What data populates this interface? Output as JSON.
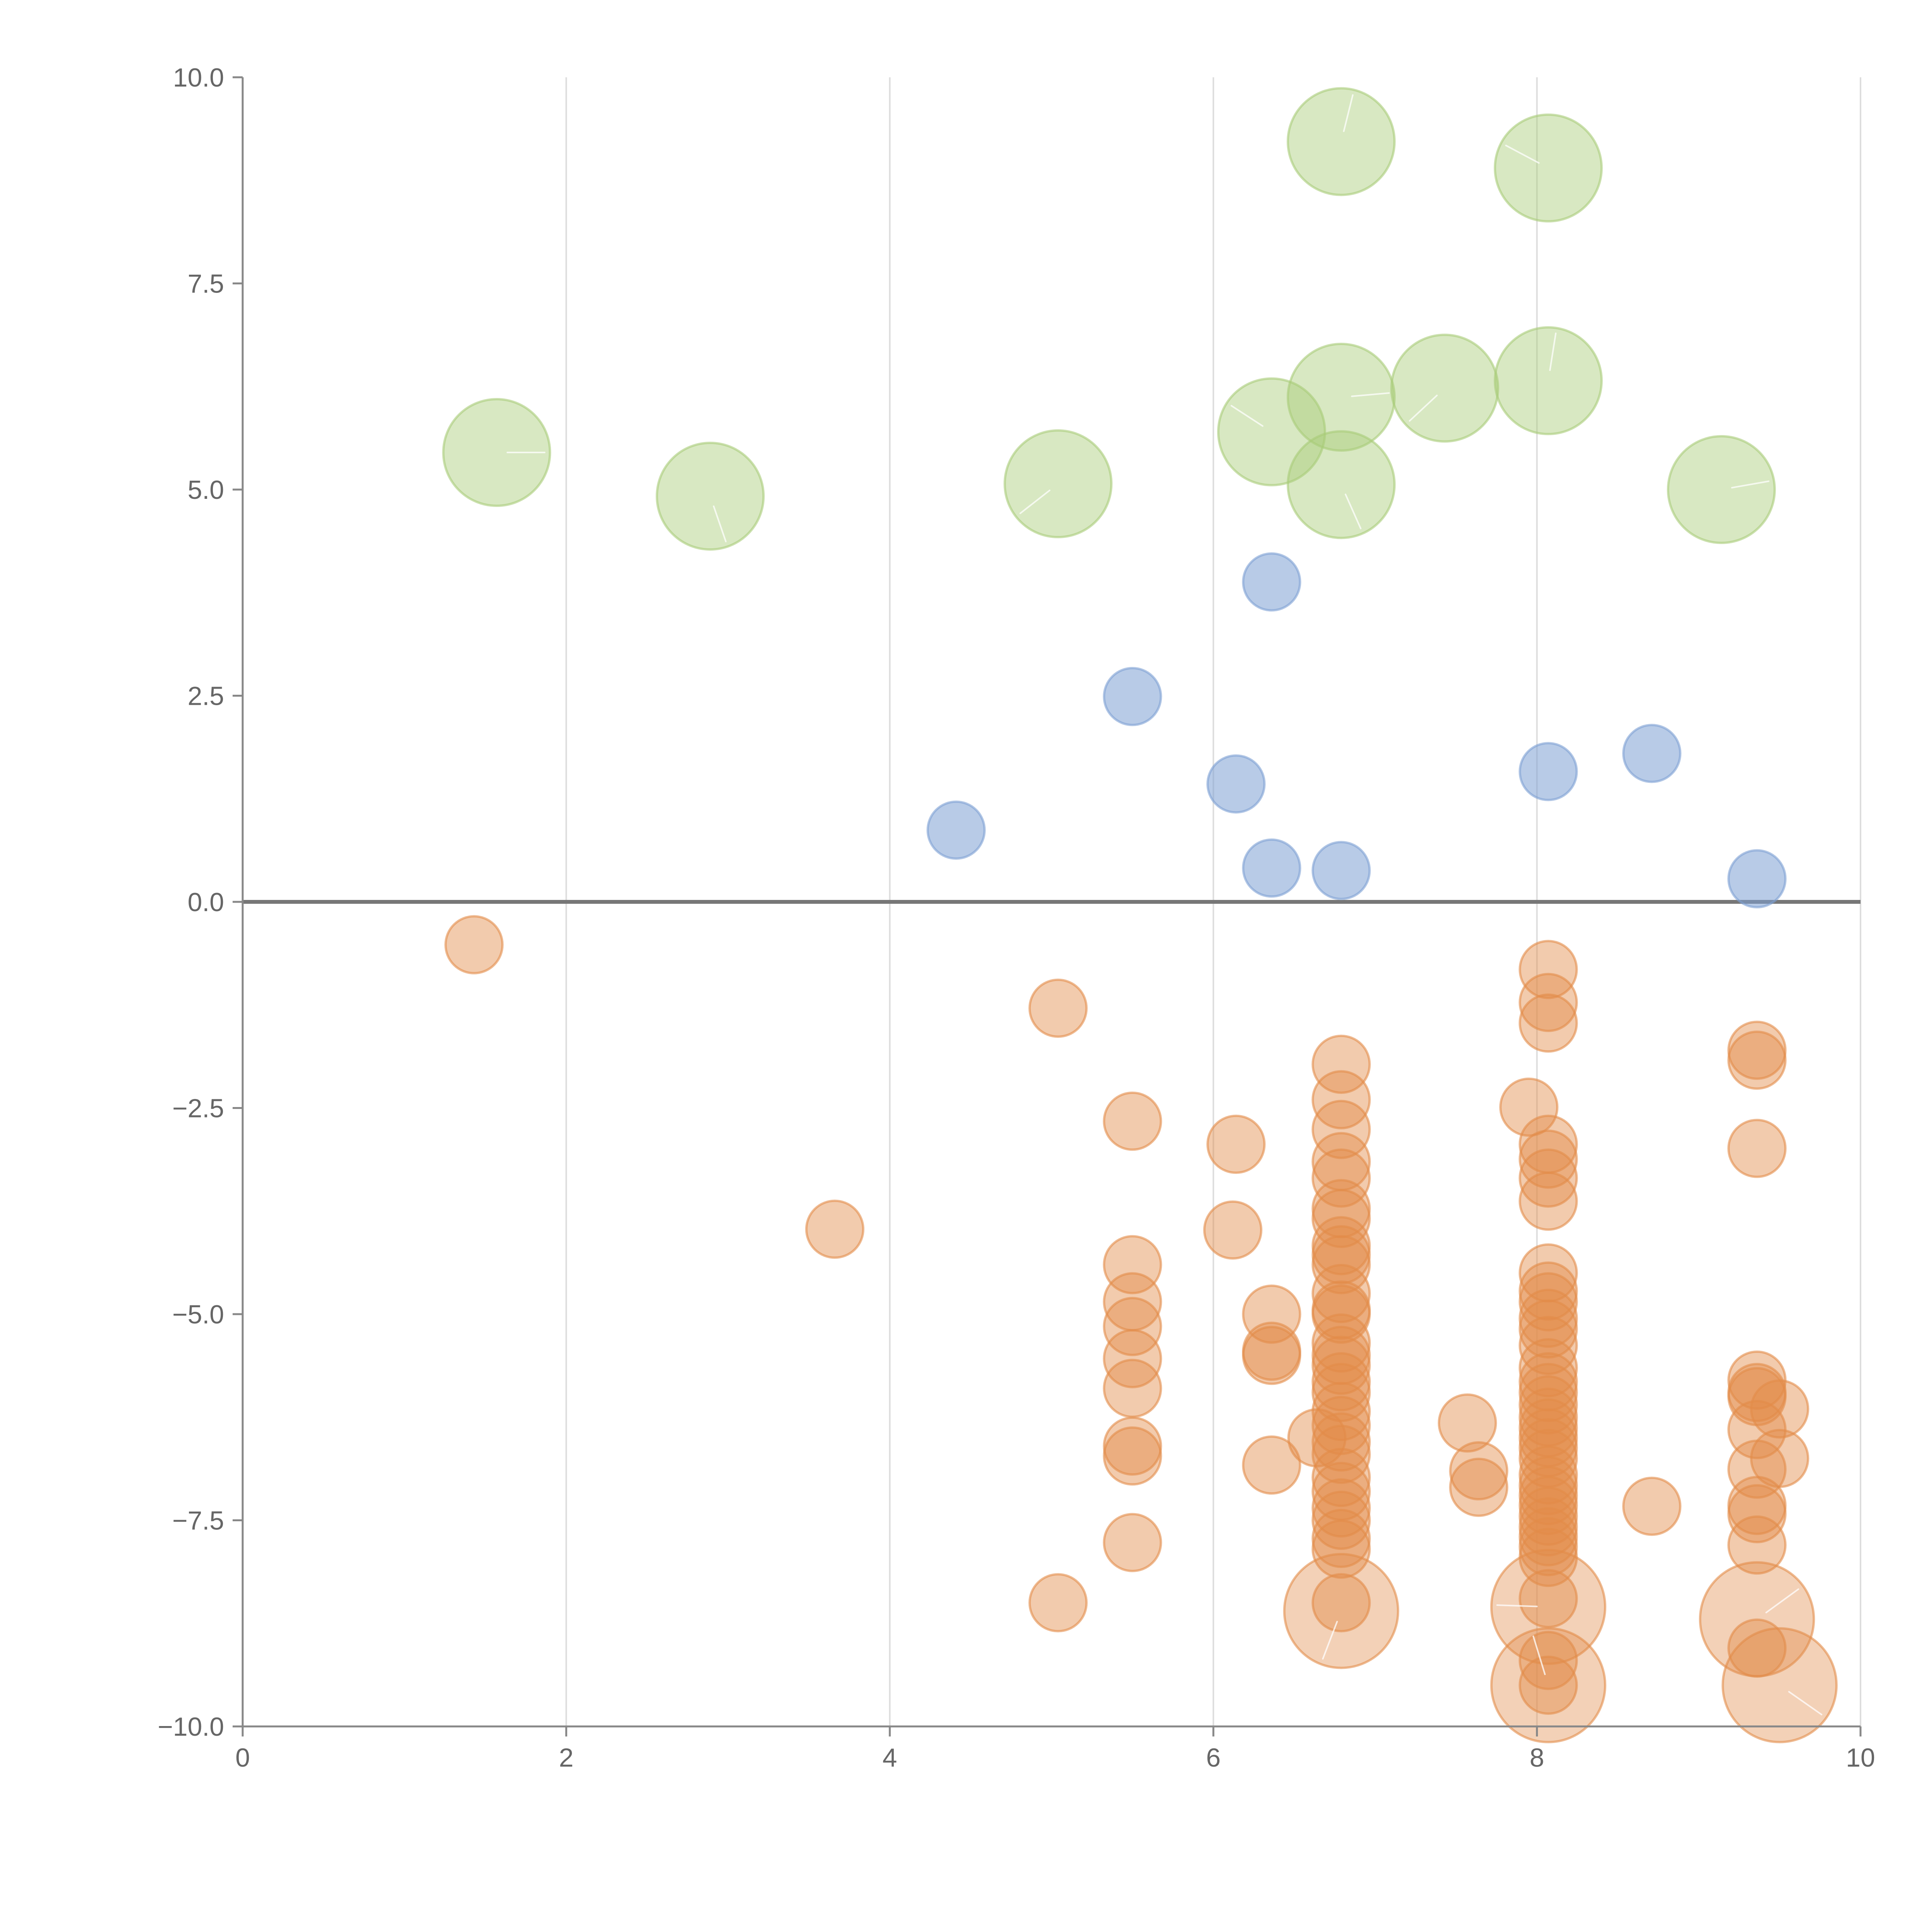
{
  "chart_data": {
    "type": "scatter",
    "title": "",
    "xlabel": "",
    "ylabel": "",
    "xlim": [
      0,
      10
    ],
    "ylim": [
      -10,
      10
    ],
    "x_ticks": [
      0,
      2,
      4,
      6,
      8,
      10
    ],
    "x_tick_labels": [
      "0",
      "2",
      "4",
      "6",
      "8",
      "10"
    ],
    "y_ticks": [
      10,
      7.5,
      5,
      2.5,
      0,
      -2.5,
      -5,
      -7.5,
      -10
    ],
    "y_tick_labels": [
      "10.0",
      "7.5",
      "5.0",
      "2.5",
      "0.0",
      "−2.5",
      "−5.0",
      "−7.5",
      "−10.0"
    ],
    "vertical_grid": true,
    "zero_line": true,
    "legend": "none",
    "series": [
      {
        "name": "green",
        "color": "#a9cc78",
        "fill_opacity": 0.45,
        "size": 3,
        "points": [
          {
            "x": 1.57,
            "y": 5.45
          },
          {
            "x": 2.89,
            "y": 4.92
          },
          {
            "x": 5.04,
            "y": 5.07
          },
          {
            "x": 6.36,
            "y": 5.7
          },
          {
            "x": 6.79,
            "y": 9.22
          },
          {
            "x": 6.79,
            "y": 6.12
          },
          {
            "x": 6.79,
            "y": 5.06
          },
          {
            "x": 7.43,
            "y": 6.23
          },
          {
            "x": 8.07,
            "y": 8.9
          },
          {
            "x": 8.07,
            "y": 6.32
          },
          {
            "x": 9.14,
            "y": 5.0
          }
        ]
      },
      {
        "name": "blue",
        "color": "#7da0d4",
        "fill_opacity": 0.55,
        "size": 1.6,
        "points": [
          {
            "x": 6.36,
            "y": 3.88
          },
          {
            "x": 5.5,
            "y": 2.49
          },
          {
            "x": 8.71,
            "y": 1.8
          },
          {
            "x": 8.07,
            "y": 1.58
          },
          {
            "x": 6.14,
            "y": 1.43
          },
          {
            "x": 4.41,
            "y": 0.87
          },
          {
            "x": 6.36,
            "y": 0.41
          },
          {
            "x": 6.79,
            "y": 0.38
          },
          {
            "x": 9.36,
            "y": 0.28
          }
        ]
      },
      {
        "name": "orange",
        "color": "#e28c4a",
        "fill_opacity": 0.45,
        "size": 1.6,
        "points": [
          {
            "x": 1.43,
            "y": -0.52
          },
          {
            "x": 5.04,
            "y": -1.29
          },
          {
            "x": 3.66,
            "y": -3.97
          },
          {
            "x": 5.04,
            "y": -8.5
          },
          {
            "x": 5.5,
            "y": -2.66
          },
          {
            "x": 5.5,
            "y": -4.4
          },
          {
            "x": 5.5,
            "y": -4.85
          },
          {
            "x": 5.5,
            "y": -5.15
          },
          {
            "x": 5.5,
            "y": -5.54
          },
          {
            "x": 5.5,
            "y": -5.9
          },
          {
            "x": 5.5,
            "y": -6.6
          },
          {
            "x": 5.5,
            "y": -6.72
          },
          {
            "x": 5.5,
            "y": -7.77
          },
          {
            "x": 6.14,
            "y": -2.94
          },
          {
            "x": 6.12,
            "y": -3.98
          },
          {
            "x": 6.36,
            "y": -5.0
          },
          {
            "x": 6.36,
            "y": -5.45
          },
          {
            "x": 6.36,
            "y": -5.5
          },
          {
            "x": 6.36,
            "y": -6.83
          },
          {
            "x": 6.64,
            "y": -6.5
          },
          {
            "x": 6.79,
            "y": -1.97
          },
          {
            "x": 6.79,
            "y": -2.4
          },
          {
            "x": 6.79,
            "y": -2.76
          },
          {
            "x": 6.79,
            "y": -3.15
          },
          {
            "x": 6.79,
            "y": -3.35
          },
          {
            "x": 6.79,
            "y": -3.72
          },
          {
            "x": 6.79,
            "y": -3.84
          },
          {
            "x": 6.79,
            "y": -4.17
          },
          {
            "x": 6.79,
            "y": -4.28
          },
          {
            "x": 6.79,
            "y": -4.4
          },
          {
            "x": 6.79,
            "y": -4.75
          },
          {
            "x": 6.79,
            "y": -4.95
          },
          {
            "x": 6.79,
            "y": -5.0
          },
          {
            "x": 6.79,
            "y": -5.35
          },
          {
            "x": 6.79,
            "y": -5.5
          },
          {
            "x": 6.79,
            "y": -5.62
          },
          {
            "x": 6.79,
            "y": -5.82
          },
          {
            "x": 6.79,
            "y": -5.95
          },
          {
            "x": 6.79,
            "y": -6.18
          },
          {
            "x": 6.79,
            "y": -6.35
          },
          {
            "x": 6.79,
            "y": -6.55
          },
          {
            "x": 6.79,
            "y": -6.7
          },
          {
            "x": 6.79,
            "y": -6.98
          },
          {
            "x": 6.79,
            "y": -7.15
          },
          {
            "x": 6.79,
            "y": -7.35
          },
          {
            "x": 6.79,
            "y": -7.5
          },
          {
            "x": 6.79,
            "y": -7.72
          },
          {
            "x": 6.79,
            "y": -7.85
          },
          {
            "x": 6.79,
            "y": -8.5
          },
          {
            "x": 7.57,
            "y": -6.32
          },
          {
            "x": 7.64,
            "y": -6.9
          },
          {
            "x": 7.64,
            "y": -7.1
          },
          {
            "x": 7.95,
            "y": -2.49
          },
          {
            "x": 8.07,
            "y": -0.82
          },
          {
            "x": 8.07,
            "y": -1.22
          },
          {
            "x": 8.07,
            "y": -1.47
          },
          {
            "x": 8.07,
            "y": -2.94
          },
          {
            "x": 8.07,
            "y": -3.12
          },
          {
            "x": 8.07,
            "y": -3.35
          },
          {
            "x": 8.07,
            "y": -3.63
          },
          {
            "x": 8.07,
            "y": -4.5
          },
          {
            "x": 8.07,
            "y": -4.72
          },
          {
            "x": 8.07,
            "y": -4.85
          },
          {
            "x": 8.07,
            "y": -5.05
          },
          {
            "x": 8.07,
            "y": -5.18
          },
          {
            "x": 8.07,
            "y": -5.38
          },
          {
            "x": 8.07,
            "y": -5.65
          },
          {
            "x": 8.07,
            "y": -5.82
          },
          {
            "x": 8.07,
            "y": -5.95
          },
          {
            "x": 8.07,
            "y": -6.1
          },
          {
            "x": 8.07,
            "y": -6.25
          },
          {
            "x": 8.07,
            "y": -6.38
          },
          {
            "x": 8.07,
            "y": -6.5
          },
          {
            "x": 8.07,
            "y": -6.62
          },
          {
            "x": 8.07,
            "y": -6.75
          },
          {
            "x": 8.07,
            "y": -6.95
          },
          {
            "x": 8.07,
            "y": -7.08
          },
          {
            "x": 8.07,
            "y": -7.2
          },
          {
            "x": 8.07,
            "y": -7.32
          },
          {
            "x": 8.07,
            "y": -7.45
          },
          {
            "x": 8.07,
            "y": -7.58
          },
          {
            "x": 8.07,
            "y": -7.7
          },
          {
            "x": 8.07,
            "y": -7.82
          },
          {
            "x": 8.07,
            "y": -7.95
          },
          {
            "x": 8.07,
            "y": -8.45
          },
          {
            "x": 8.07,
            "y": -9.2
          },
          {
            "x": 8.07,
            "y": -9.5
          },
          {
            "x": 8.71,
            "y": -7.33
          },
          {
            "x": 9.36,
            "y": -1.8
          },
          {
            "x": 9.36,
            "y": -1.92
          },
          {
            "x": 9.36,
            "y": -2.99
          },
          {
            "x": 9.36,
            "y": -5.8
          },
          {
            "x": 9.36,
            "y": -5.95
          },
          {
            "x": 9.36,
            "y": -6.0
          },
          {
            "x": 9.36,
            "y": -6.4
          },
          {
            "x": 9.36,
            "y": -6.88
          },
          {
            "x": 9.36,
            "y": -7.32
          },
          {
            "x": 9.36,
            "y": -7.42
          },
          {
            "x": 9.36,
            "y": -7.8
          },
          {
            "x": 9.36,
            "y": -9.05
          },
          {
            "x": 9.5,
            "y": -6.15
          },
          {
            "x": 9.5,
            "y": -6.75
          }
        ]
      },
      {
        "name": "orange-large",
        "color": "#e28c4a",
        "fill_opacity": 0.4,
        "size": 3.2,
        "points": [
          {
            "x": 6.79,
            "y": -8.6
          },
          {
            "x": 8.07,
            "y": -8.55
          },
          {
            "x": 8.07,
            "y": -9.5
          },
          {
            "x": 9.36,
            "y": -8.7
          },
          {
            "x": 9.5,
            "y": -9.5
          }
        ]
      }
    ]
  }
}
